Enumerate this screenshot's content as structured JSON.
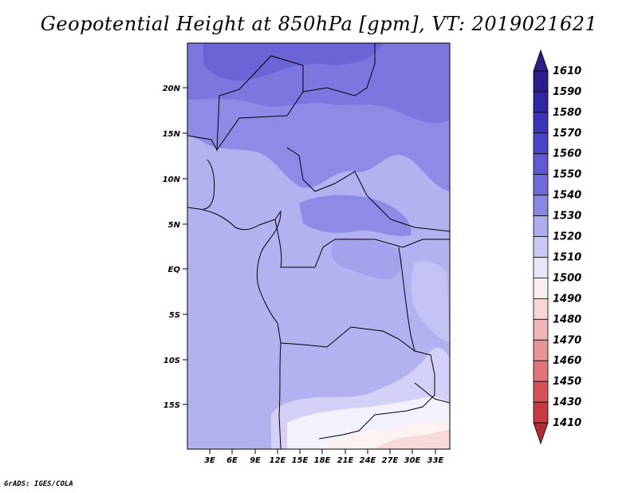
{
  "title": "Geopotential Height at 850hPa [gpm], VT: 2019021621",
  "credit": "GrADS: IGES/COLA",
  "map": {
    "lat_labels": [
      "20N",
      "15N",
      "10N",
      "5N",
      "EQ",
      "5S",
      "10S",
      "15S"
    ],
    "lon_labels": [
      "3E",
      "6E",
      "9E",
      "12E",
      "15E",
      "18E",
      "21E",
      "24E",
      "27E",
      "30E",
      "33E"
    ]
  },
  "colorbar": {
    "labels": [
      "1610",
      "1590",
      "1580",
      "1570",
      "1560",
      "1550",
      "1540",
      "1530",
      "1520",
      "1510",
      "1500",
      "1490",
      "1480",
      "1470",
      "1460",
      "1450",
      "1430",
      "1410"
    ],
    "colors": [
      "#2a1d8c",
      "#2f26a8",
      "#3a34bc",
      "#4b45c9",
      "#5f5ad4",
      "#6f6ad9",
      "#8a86e3",
      "#aeabf0",
      "#c9c7f6",
      "#e6e5fb",
      "#fbeef0",
      "#f7d6d8",
      "#f1b5b8",
      "#e99497",
      "#e07478",
      "#d45358",
      "#c63a40",
      "#b32a2f"
    ]
  }
}
